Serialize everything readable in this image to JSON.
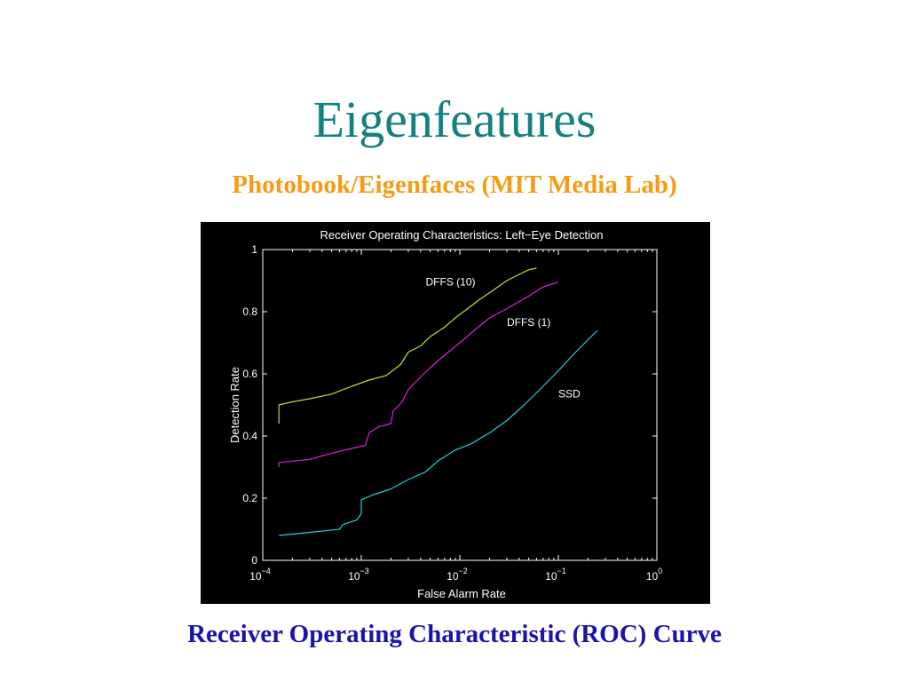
{
  "slide": {
    "title": "Eigenfeatures",
    "subtitle": "Photobook/Eigenfaces (MIT Media Lab)",
    "caption": "Receiver Operating Characteristic (ROC) Curve"
  },
  "colors": {
    "title": "#158080",
    "subtitle": "#f49c14",
    "caption": "#1a14a8",
    "plot_background": "#000000",
    "axes": "#ffffff"
  },
  "chart_data": {
    "type": "line",
    "title": "Receiver Operating Characteristics: Left−Eye Detection",
    "xlabel": "False Alarm Rate",
    "ylabel": "Detection Rate",
    "xscale": "log",
    "xlim": [
      0.0001,
      1
    ],
    "ylim": [
      0,
      1
    ],
    "x_ticks": [
      {
        "base": "10",
        "exp": "−4"
      },
      {
        "base": "10",
        "exp": "−3"
      },
      {
        "base": "10",
        "exp": "−2"
      },
      {
        "base": "10",
        "exp": "−1"
      },
      {
        "base": "10",
        "exp": "0"
      }
    ],
    "y_ticks": [
      "0",
      "0.2",
      "0.4",
      "0.6",
      "0.8",
      "1"
    ],
    "grid": false,
    "series": [
      {
        "name": "DFFS (10)",
        "color": "#d8d820",
        "points": [
          [
            0.000146,
            0.44
          ],
          [
            0.000146,
            0.5
          ],
          [
            0.0002,
            0.51
          ],
          [
            0.0003,
            0.52
          ],
          [
            0.0005,
            0.535
          ],
          [
            0.0008,
            0.56
          ],
          [
            0.0012,
            0.58
          ],
          [
            0.0018,
            0.595
          ],
          [
            0.0025,
            0.63
          ],
          [
            0.003,
            0.67
          ],
          [
            0.004,
            0.69
          ],
          [
            0.005,
            0.72
          ],
          [
            0.007,
            0.75
          ],
          [
            0.009,
            0.78
          ],
          [
            0.012,
            0.81
          ],
          [
            0.016,
            0.84
          ],
          [
            0.022,
            0.87
          ],
          [
            0.03,
            0.9
          ],
          [
            0.04,
            0.92
          ],
          [
            0.05,
            0.935
          ],
          [
            0.06,
            0.94
          ]
        ]
      },
      {
        "name": "DFFS (1)",
        "color": "#e020e0",
        "points": [
          [
            0.000146,
            0.3
          ],
          [
            0.000146,
            0.315
          ],
          [
            0.0003,
            0.325
          ],
          [
            0.0005,
            0.345
          ],
          [
            0.0008,
            0.36
          ],
          [
            0.0011,
            0.37
          ],
          [
            0.0012,
            0.41
          ],
          [
            0.0015,
            0.43
          ],
          [
            0.002,
            0.44
          ],
          [
            0.0021,
            0.48
          ],
          [
            0.0026,
            0.51
          ],
          [
            0.003,
            0.55
          ],
          [
            0.004,
            0.59
          ],
          [
            0.005,
            0.62
          ],
          [
            0.007,
            0.66
          ],
          [
            0.01,
            0.7
          ],
          [
            0.014,
            0.74
          ],
          [
            0.02,
            0.78
          ],
          [
            0.03,
            0.81
          ],
          [
            0.05,
            0.85
          ],
          [
            0.07,
            0.88
          ],
          [
            0.1,
            0.895
          ]
        ]
      },
      {
        "name": "SSD",
        "color": "#20d0e0",
        "points": [
          [
            0.000146,
            0.08
          ],
          [
            0.0003,
            0.09
          ],
          [
            0.0006,
            0.1
          ],
          [
            0.00065,
            0.115
          ],
          [
            0.0009,
            0.13
          ],
          [
            0.001,
            0.15
          ],
          [
            0.001,
            0.195
          ],
          [
            0.0013,
            0.21
          ],
          [
            0.002,
            0.23
          ],
          [
            0.003,
            0.26
          ],
          [
            0.0045,
            0.285
          ],
          [
            0.006,
            0.32
          ],
          [
            0.009,
            0.355
          ],
          [
            0.013,
            0.375
          ],
          [
            0.02,
            0.41
          ],
          [
            0.03,
            0.45
          ],
          [
            0.045,
            0.5
          ],
          [
            0.07,
            0.56
          ],
          [
            0.1,
            0.61
          ],
          [
            0.15,
            0.67
          ],
          [
            0.2,
            0.71
          ],
          [
            0.25,
            0.74
          ]
        ]
      }
    ],
    "annotations": [
      {
        "text": "DFFS (10)",
        "x": 0.0045,
        "y": 0.885
      },
      {
        "text": "DFFS (1)",
        "x": 0.03,
        "y": 0.755
      },
      {
        "text": "SSD",
        "x": 0.1,
        "y": 0.525
      }
    ]
  }
}
